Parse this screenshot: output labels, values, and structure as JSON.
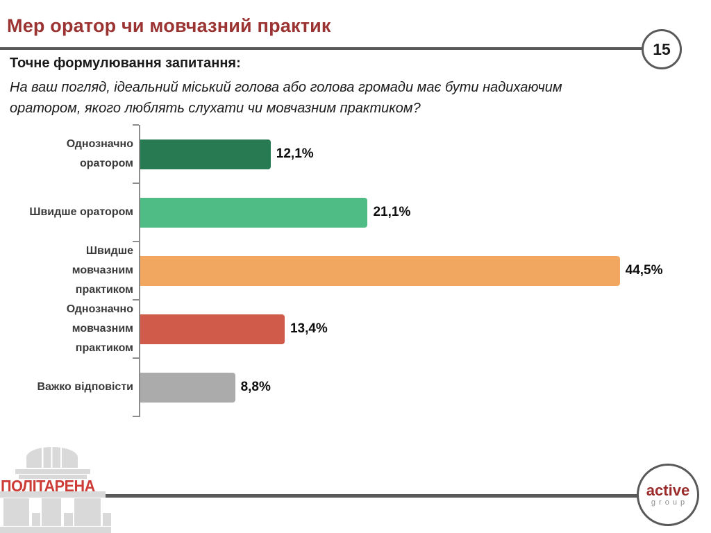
{
  "slide": {
    "title": "Мер оратор чи мовчазний практик",
    "page_number": "15",
    "question_label": "Точне формулювання запитання:",
    "question_line1": "На ваш погляд, ідеальний міський голова або голова громади має бути надихаючим",
    "question_line2": "оратором, якого люблять слухати чи мовчазним практиком?"
  },
  "chart_data": {
    "type": "bar",
    "orientation": "horizontal",
    "title": "",
    "xlabel": "",
    "ylabel": "",
    "xlim": [
      0,
      50
    ],
    "grid": false,
    "legend": false,
    "categories": [
      "Однозначно оратором",
      "Швидше оратором",
      "Швидше мовчазним практиком",
      "Однозначно мовчазним практиком",
      "Важко відповісти"
    ],
    "categories_lines": [
      [
        "Однозначно",
        "оратором"
      ],
      [
        "Швидше оратором"
      ],
      [
        "Швидше",
        "мовчазним",
        "практиком"
      ],
      [
        "Однозначно",
        "мовчазним",
        "практиком"
      ],
      [
        "Важко відповісти"
      ]
    ],
    "values": [
      12.1,
      21.1,
      44.5,
      13.4,
      8.8
    ],
    "value_labels": [
      "12,1%",
      "21,1%",
      "44,5%",
      "13,4%",
      "8,8%"
    ],
    "bar_colors": [
      "#287A52",
      "#4FBC85",
      "#F1A75F",
      "#D05B4A",
      "#ABABAB"
    ]
  },
  "footer": {
    "left_logo_text": "ПОЛІТАРЕНА",
    "right_logo_line1": "active",
    "right_logo_line2": "group"
  },
  "colors": {
    "title_red": "#9B3332",
    "divider_gray": "#595959",
    "axis_gray": "#8C8C8C",
    "label_text": "#3A3A3A",
    "logo_building_gray": "#D9D9D9",
    "logo_text_red": "#CC3B36",
    "active_red": "#9B2B2B",
    "active_gray": "#8C8C8C"
  }
}
